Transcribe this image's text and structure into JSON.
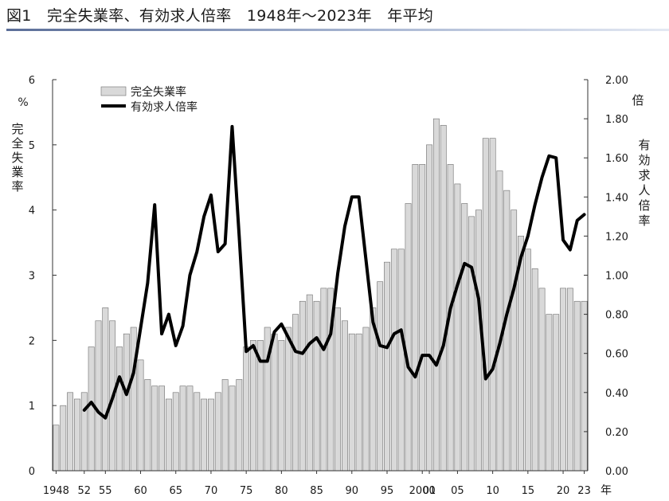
{
  "page": {
    "title": "図1　完全失業率、有効求人倍率　1948年～2023年　年平均"
  },
  "chart_data": {
    "type": "bar",
    "series": [
      {
        "name": "完全失業率",
        "kind": "bar",
        "axis": "left",
        "color": "#d9d9d9",
        "x": [
          1948,
          1949,
          1950,
          1951,
          1952,
          1953,
          1954,
          1955,
          1956,
          1957,
          1958,
          1959,
          1960,
          1961,
          1962,
          1963,
          1964,
          1965,
          1966,
          1967,
          1968,
          1969,
          1970,
          1971,
          1972,
          1973,
          1974,
          1975,
          1976,
          1977,
          1978,
          1979,
          1980,
          1981,
          1982,
          1983,
          1984,
          1985,
          1986,
          1987,
          1988,
          1989,
          1990,
          1991,
          1992,
          1993,
          1994,
          1995,
          1996,
          1997,
          1998,
          1999,
          2000,
          2001,
          2002,
          2003,
          2004,
          2005,
          2006,
          2007,
          2008,
          2009,
          2010,
          2011,
          2012,
          2013,
          2014,
          2015,
          2016,
          2017,
          2018,
          2019,
          2020,
          2021,
          2022,
          2023
        ],
        "values": [
          0.7,
          1.0,
          1.2,
          1.1,
          1.2,
          1.9,
          2.3,
          2.5,
          2.3,
          1.9,
          2.1,
          2.2,
          1.7,
          1.4,
          1.3,
          1.3,
          1.1,
          1.2,
          1.3,
          1.3,
          1.2,
          1.1,
          1.1,
          1.2,
          1.4,
          1.3,
          1.4,
          1.9,
          2.0,
          2.0,
          2.2,
          2.1,
          2.0,
          2.2,
          2.4,
          2.6,
          2.7,
          2.6,
          2.8,
          2.8,
          2.5,
          2.3,
          2.1,
          2.1,
          2.2,
          2.5,
          2.9,
          3.2,
          3.4,
          3.4,
          4.1,
          4.7,
          4.7,
          5.0,
          5.4,
          5.3,
          4.7,
          4.4,
          4.1,
          3.9,
          4.0,
          5.1,
          5.1,
          4.6,
          4.3,
          4.0,
          3.6,
          3.4,
          3.1,
          2.8,
          2.4,
          2.4,
          2.8,
          2.8,
          2.6,
          2.6
        ]
      },
      {
        "name": "有効求人倍率",
        "kind": "line",
        "axis": "right",
        "color": "#000000",
        "x": [
          1952,
          1953,
          1954,
          1955,
          1956,
          1957,
          1958,
          1959,
          1960,
          1961,
          1962,
          1963,
          1964,
          1965,
          1966,
          1967,
          1968,
          1969,
          1970,
          1971,
          1972,
          1973,
          1974,
          1975,
          1976,
          1977,
          1978,
          1979,
          1980,
          1981,
          1982,
          1983,
          1984,
          1985,
          1986,
          1987,
          1988,
          1989,
          1990,
          1991,
          1992,
          1993,
          1994,
          1995,
          1996,
          1997,
          1998,
          1999,
          2000,
          2001,
          2002,
          2003,
          2004,
          2005,
          2006,
          2007,
          2008,
          2009,
          2010,
          2011,
          2012,
          2013,
          2014,
          2015,
          2016,
          2017,
          2018,
          2019,
          2020,
          2021,
          2022,
          2023
        ],
        "values": [
          0.31,
          0.35,
          0.3,
          0.27,
          0.37,
          0.48,
          0.39,
          0.5,
          0.73,
          0.96,
          1.36,
          0.7,
          0.8,
          0.64,
          0.74,
          1.0,
          1.12,
          1.3,
          1.41,
          1.12,
          1.16,
          1.76,
          1.2,
          0.61,
          0.64,
          0.56,
          0.56,
          0.71,
          0.75,
          0.68,
          0.61,
          0.6,
          0.65,
          0.68,
          0.62,
          0.7,
          1.01,
          1.25,
          1.4,
          1.4,
          1.08,
          0.76,
          0.64,
          0.63,
          0.7,
          0.72,
          0.53,
          0.48,
          0.59,
          0.59,
          0.54,
          0.64,
          0.83,
          0.95,
          1.06,
          1.04,
          0.88,
          0.47,
          0.52,
          0.65,
          0.8,
          0.93,
          1.09,
          1.2,
          1.36,
          1.5,
          1.61,
          1.6,
          1.18,
          1.13,
          1.28,
          1.31
        ]
      }
    ],
    "ylim_left": [
      0,
      6
    ],
    "yticks_left": [
      "0",
      "1",
      "2",
      "3",
      "4",
      "5",
      "6"
    ],
    "ylim_right": [
      0,
      2.0
    ],
    "yticks_right": [
      "0.00",
      "0.20",
      "0.40",
      "0.60",
      "0.80",
      "1.00",
      "1.20",
      "1.40",
      "1.60",
      "1.80",
      "2.00"
    ],
    "xlim": [
      1948,
      2023
    ],
    "xticks": [
      {
        "year": 1948,
        "label": "1948"
      },
      {
        "year": 1952,
        "label": "52"
      },
      {
        "year": 1955,
        "label": "55"
      },
      {
        "year": 1960,
        "label": "60"
      },
      {
        "year": 1965,
        "label": "65"
      },
      {
        "year": 1970,
        "label": "70"
      },
      {
        "year": 1975,
        "label": "75"
      },
      {
        "year": 1980,
        "label": "80"
      },
      {
        "year": 1985,
        "label": "85"
      },
      {
        "year": 1990,
        "label": "90"
      },
      {
        "year": 1995,
        "label": "95"
      },
      {
        "year": 2000,
        "label": "2000"
      },
      {
        "year": 2001,
        "label": "01"
      },
      {
        "year": 2005,
        "label": "05"
      },
      {
        "year": 2010,
        "label": "10"
      },
      {
        "year": 2015,
        "label": "15"
      },
      {
        "year": 2020,
        "label": "20"
      },
      {
        "year": 2023,
        "label": "23"
      }
    ],
    "x_unit": "年",
    "ylabel_left": "完全失業率",
    "yunit_left": "%",
    "ylabel_right": "有効求人倍率",
    "yunit_right": "倍",
    "legend": [
      "完全失業率",
      "有効求人倍率"
    ],
    "legend_position": "top-left",
    "grid": false
  }
}
